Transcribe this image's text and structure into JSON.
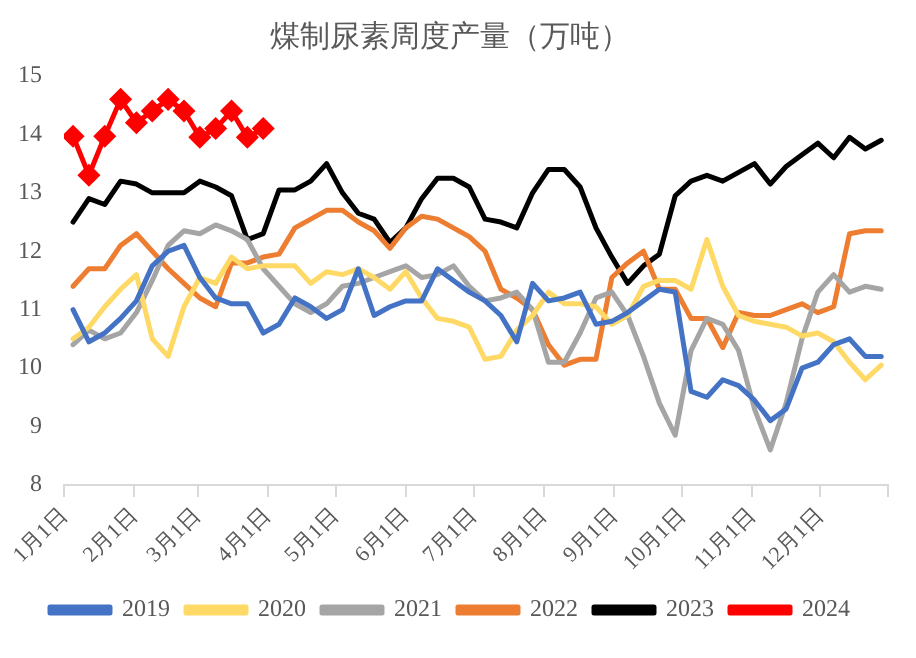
{
  "chart_data": {
    "type": "line",
    "title": "煤制尿素周度产量（万吨）",
    "x": [
      "--01-05",
      "--01-12",
      "--01-19",
      "--01-26",
      "--02-02",
      "--02-09",
      "--02-16",
      "--02-23",
      "--03-02",
      "--03-09",
      "--03-16",
      "--03-23",
      "--03-30",
      "--04-06",
      "--04-13",
      "--04-20",
      "--04-27",
      "--05-04",
      "--05-11",
      "--05-18",
      "--05-25",
      "--06-01",
      "--06-08",
      "--06-15",
      "--06-22",
      "--06-29",
      "--07-06",
      "--07-13",
      "--07-20",
      "--07-27",
      "--08-03",
      "--08-10",
      "--08-17",
      "--08-24",
      "--08-31",
      "--09-07",
      "--09-14",
      "--09-21",
      "--09-28",
      "--10-05",
      "--10-12",
      "--10-19",
      "--10-26",
      "--11-02",
      "--11-09",
      "--11-16",
      "--11-23",
      "--11-30",
      "--12-07",
      "--12-14",
      "--12-21",
      "--12-28"
    ],
    "series": [
      {
        "name": "2019",
        "color": "#4472c4",
        "values": [
          11.0,
          10.45,
          10.6,
          10.85,
          11.15,
          11.75,
          12.0,
          12.1,
          11.55,
          11.2,
          11.1,
          11.1,
          10.6,
          10.75,
          11.2,
          11.05,
          10.85,
          11.0,
          11.7,
          10.9,
          11.05,
          11.15,
          11.15,
          11.7,
          11.5,
          11.3,
          11.15,
          10.9,
          10.45,
          11.45,
          11.15,
          11.2,
          11.3,
          10.75,
          10.8,
          10.95,
          11.15,
          11.35,
          11.3,
          9.6,
          9.5,
          9.8,
          9.7,
          9.45,
          9.1,
          9.3,
          10.0,
          10.1,
          10.4,
          10.5,
          10.2,
          10.2
        ]
      },
      {
        "name": "2020",
        "color": "#ffd966",
        "values": [
          10.5,
          10.7,
          11.05,
          11.35,
          11.6,
          10.5,
          10.2,
          11.05,
          11.55,
          11.45,
          11.9,
          11.7,
          11.75,
          11.75,
          11.75,
          11.45,
          11.65,
          11.6,
          11.7,
          11.55,
          11.35,
          11.65,
          11.2,
          10.85,
          10.8,
          10.7,
          10.15,
          10.2,
          10.65,
          10.9,
          11.3,
          11.1,
          11.1,
          11.05,
          10.75,
          10.9,
          11.4,
          11.5,
          11.5,
          11.35,
          12.2,
          11.4,
          10.9,
          10.8,
          10.75,
          10.7,
          10.55,
          10.6,
          10.45,
          10.1,
          9.8,
          10.05
        ]
      },
      {
        "name": "2021",
        "color": "#a5a5a5",
        "values": [
          10.4,
          10.65,
          10.5,
          10.6,
          10.95,
          11.5,
          12.1,
          12.35,
          12.3,
          12.45,
          12.35,
          12.2,
          11.7,
          11.4,
          11.1,
          10.95,
          11.1,
          11.4,
          11.45,
          11.55,
          11.65,
          11.75,
          11.55,
          11.6,
          11.75,
          11.4,
          11.15,
          11.2,
          11.3,
          11.0,
          10.1,
          10.1,
          10.6,
          11.2,
          11.3,
          10.9,
          10.2,
          9.4,
          8.85,
          10.3,
          10.85,
          10.75,
          10.3,
          9.3,
          8.6,
          9.4,
          10.5,
          11.3,
          11.6,
          11.3,
          11.4,
          11.35
        ]
      },
      {
        "name": "2022",
        "color": "#ed7d31",
        "values": [
          11.4,
          11.7,
          11.7,
          12.1,
          12.3,
          12.0,
          11.7,
          11.45,
          11.2,
          11.05,
          11.8,
          11.8,
          11.9,
          11.95,
          12.4,
          12.55,
          12.7,
          12.7,
          12.5,
          12.35,
          12.05,
          12.4,
          12.6,
          12.55,
          12.4,
          12.25,
          12.0,
          11.35,
          11.2,
          11.0,
          10.4,
          10.05,
          10.15,
          10.15,
          11.55,
          11.8,
          12.0,
          11.35,
          11.35,
          10.85,
          10.85,
          10.35,
          10.95,
          10.9,
          10.9,
          11.0,
          11.1,
          10.95,
          11.05,
          12.3,
          12.35,
          12.35
        ]
      },
      {
        "name": "2023",
        "color": "#000000",
        "values": [
          12.5,
          12.9,
          12.8,
          13.2,
          13.15,
          13.0,
          13.0,
          13.0,
          13.2,
          13.1,
          12.95,
          12.2,
          12.3,
          13.05,
          13.05,
          13.2,
          13.5,
          13.0,
          12.65,
          12.55,
          12.15,
          12.4,
          12.9,
          13.25,
          13.25,
          13.1,
          12.55,
          12.5,
          12.4,
          13.0,
          13.4,
          13.4,
          13.1,
          12.4,
          11.9,
          11.45,
          11.75,
          11.95,
          12.95,
          13.2,
          13.3,
          13.2,
          13.35,
          13.5,
          13.15,
          13.45,
          13.65,
          13.85,
          13.6,
          13.95,
          13.75,
          13.9
        ]
      },
      {
        "name": "2024",
        "color": "#ff0000",
        "marker": "diamond",
        "values": [
          13.97,
          13.3,
          13.97,
          14.6,
          14.2,
          14.4,
          14.6,
          14.4,
          13.95,
          14.1,
          14.4,
          13.95,
          14.1,
          null,
          null,
          null,
          null,
          null,
          null,
          null,
          null,
          null,
          null,
          null,
          null,
          null,
          null,
          null,
          null,
          null,
          null,
          null,
          null,
          null,
          null,
          null,
          null,
          null,
          null,
          null,
          null,
          null,
          null,
          null,
          null,
          null,
          null,
          null,
          null,
          null,
          null,
          null
        ]
      }
    ],
    "xlim": [
      "--01-01",
      "--12-31"
    ],
    "xticks": [
      {
        "value": "--01-01",
        "label": "1月1日"
      },
      {
        "value": "--02-01",
        "label": "2月1日"
      },
      {
        "value": "--03-01",
        "label": "3月1日"
      },
      {
        "value": "--04-01",
        "label": "4月1日"
      },
      {
        "value": "--05-01",
        "label": "5月1日"
      },
      {
        "value": "--06-01",
        "label": "6月1日"
      },
      {
        "value": "--07-01",
        "label": "7月1日"
      },
      {
        "value": "--08-01",
        "label": "8月1日"
      },
      {
        "value": "--09-01",
        "label": "9月1日"
      },
      {
        "value": "--10-01",
        "label": "10月1日"
      },
      {
        "value": "--11-01",
        "label": "11月1日"
      },
      {
        "value": "--12-01",
        "label": "12月1日"
      },
      {
        "value": "--12-31",
        "label": null
      }
    ],
    "ylim": [
      8,
      15
    ],
    "yticks": [
      8,
      9,
      10,
      11,
      12,
      13,
      14,
      15
    ],
    "legend": "bottom",
    "line_style": "solid"
  }
}
